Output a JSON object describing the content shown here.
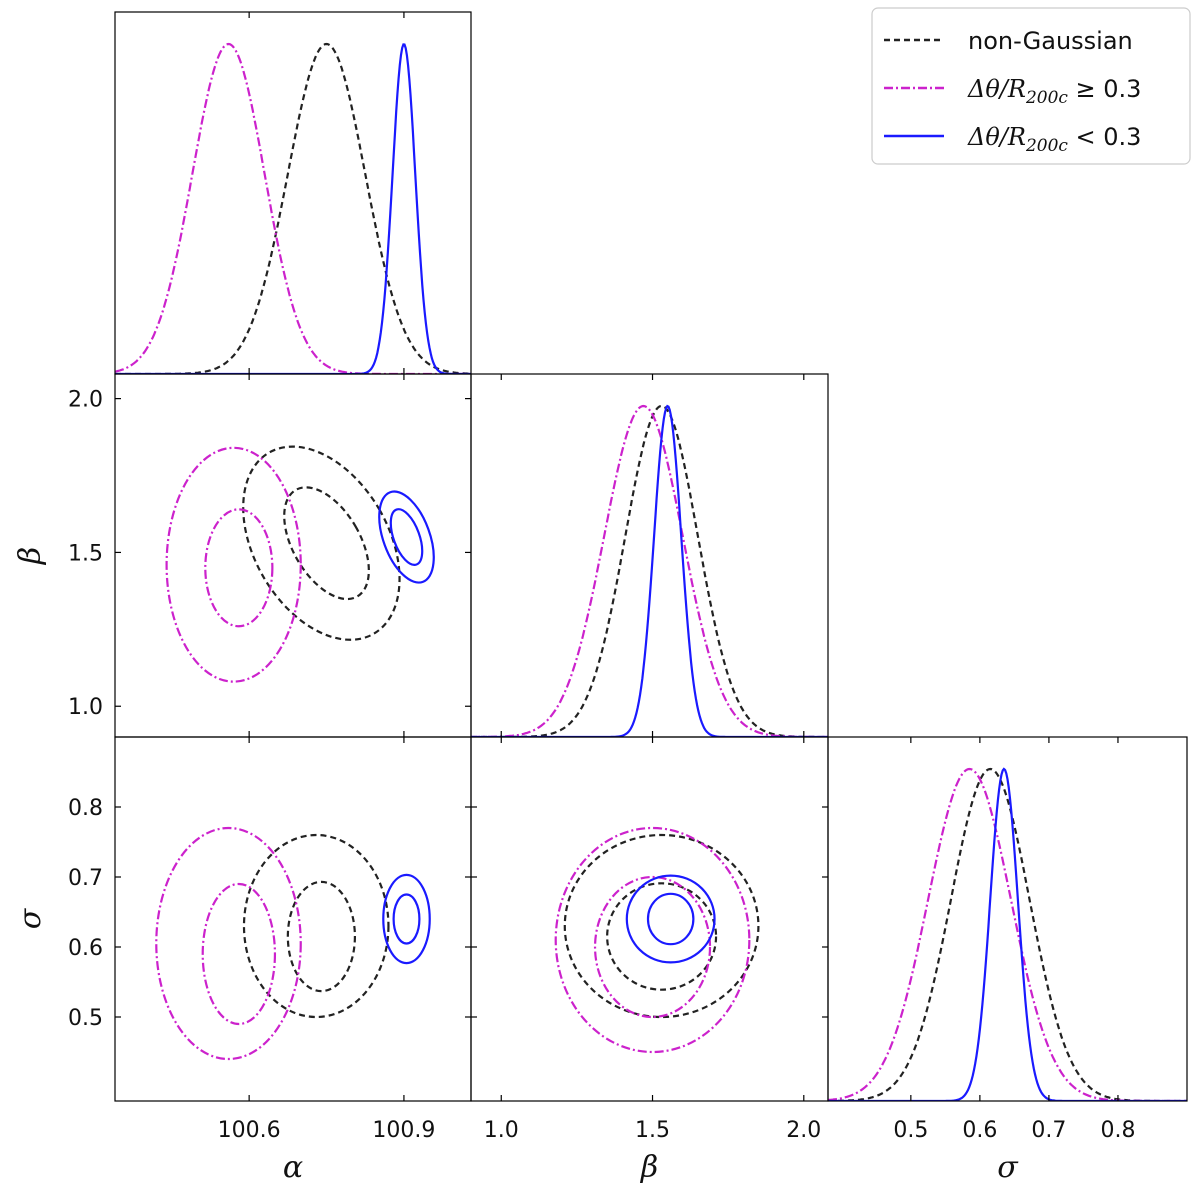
{
  "chart_data": {
    "type": "corner",
    "parameters": [
      {
        "name": "alpha",
        "label": "α",
        "range": [
          100.34,
          101.03
        ],
        "ticks": [
          100.6,
          100.9
        ],
        "tick_labels": [
          "100.6",
          "100.9"
        ]
      },
      {
        "name": "beta",
        "label": "β",
        "range": [
          0.9,
          2.08
        ],
        "ticks": [
          1.0,
          1.5,
          2.0
        ],
        "tick_labels": [
          "1.0",
          "1.5",
          "2.0"
        ]
      },
      {
        "name": "sigma",
        "label": "σ",
        "range": [
          0.38,
          0.9
        ],
        "ticks": [
          0.5,
          0.6,
          0.7,
          0.8
        ],
        "tick_labels": [
          "0.5",
          "0.6",
          "0.7",
          "0.8"
        ]
      }
    ],
    "legend_position": "top-right",
    "series": [
      {
        "name": "non-Gaussian",
        "color": "#222222",
        "linestyle": "dashed",
        "mean": [
          100.75,
          1.53,
          0.615
        ],
        "std": [
          0.075,
          0.12,
          0.057
        ],
        "contours": {
          "alpha_beta": {
            "inner": {
              "center": [
                100.75,
                1.53
              ],
              "half_width": [
                0.065,
                0.2
              ],
              "rotation": -30
            },
            "outer": {
              "center": [
                100.74,
                1.53
              ],
              "half_width": [
                0.13,
                0.34
              ],
              "rotation": -30
            }
          },
          "alpha_sigma": {
            "inner": {
              "center": [
                100.74,
                0.615
              ],
              "half_width": [
                0.065,
                0.078
              ],
              "rotation": 0
            },
            "outer": {
              "center": [
                100.73,
                0.63
              ],
              "half_width": [
                0.14,
                0.13
              ],
              "rotation": 0
            }
          },
          "beta_sigma": {
            "inner": {
              "center": [
                1.53,
                0.615
              ],
              "half_width": [
                0.18,
                0.076
              ],
              "rotation": 0
            },
            "outer": {
              "center": [
                1.53,
                0.63
              ],
              "half_width": [
                0.32,
                0.13
              ],
              "rotation": 0
            }
          }
        }
      },
      {
        "name": "Δθ/R200c ≥ 0.3",
        "color": "#cc22cc",
        "linestyle": "dashdot",
        "mean": [
          100.56,
          1.47,
          0.585
        ],
        "std": [
          0.07,
          0.13,
          0.06
        ],
        "contours": {
          "alpha_beta": {
            "inner": {
              "center": [
                100.58,
                1.45
              ],
              "half_width": [
                0.065,
                0.19
              ],
              "rotation": 0
            },
            "outer": {
              "center": [
                100.57,
                1.46
              ],
              "half_width": [
                0.13,
                0.38
              ],
              "rotation": 0
            }
          },
          "alpha_sigma": {
            "inner": {
              "center": [
                100.58,
                0.59
              ],
              "half_width": [
                0.07,
                0.1
              ],
              "rotation": 0
            },
            "outer": {
              "center": [
                100.56,
                0.605
              ],
              "half_width": [
                0.14,
                0.165
              ],
              "rotation": 0
            }
          },
          "beta_sigma": {
            "inner": {
              "center": [
                1.5,
                0.6
              ],
              "half_width": [
                0.19,
                0.1
              ],
              "rotation": 0
            },
            "outer": {
              "center": [
                1.5,
                0.61
              ],
              "half_width": [
                0.32,
                0.16
              ],
              "rotation": 0
            }
          }
        }
      },
      {
        "name": "Δθ/R200c < 0.3",
        "color": "#1a1aff",
        "linestyle": "solid",
        "mean": [
          100.9,
          1.55,
          0.635
        ],
        "std": [
          0.022,
          0.045,
          0.02
        ],
        "contours": {
          "alpha_beta": {
            "inner": {
              "center": [
                100.905,
                1.55
              ],
              "half_width": [
                0.025,
                0.095
              ],
              "rotation": -20
            },
            "outer": {
              "center": [
                100.905,
                1.55
              ],
              "half_width": [
                0.045,
                0.155
              ],
              "rotation": -20
            }
          },
          "alpha_sigma": {
            "inner": {
              "center": [
                100.905,
                0.64
              ],
              "half_width": [
                0.025,
                0.035
              ],
              "rotation": 0
            },
            "outer": {
              "center": [
                100.905,
                0.64
              ],
              "half_width": [
                0.045,
                0.063
              ],
              "rotation": 0
            }
          },
          "beta_sigma": {
            "inner": {
              "center": [
                1.56,
                0.64
              ],
              "half_width": [
                0.075,
                0.036
              ],
              "rotation": 0
            },
            "outer": {
              "center": [
                1.56,
                0.64
              ],
              "half_width": [
                0.145,
                0.062
              ],
              "rotation": 0
            }
          }
        }
      }
    ]
  },
  "legend": {
    "entries": [
      {
        "label": "non-Gaussian"
      },
      {
        "label": "Δθ/R",
        "subscript": "200c",
        "relation": "≥ 0.3"
      },
      {
        "label": "Δθ/R",
        "subscript": "200c",
        "relation": "< 0.3"
      }
    ]
  }
}
